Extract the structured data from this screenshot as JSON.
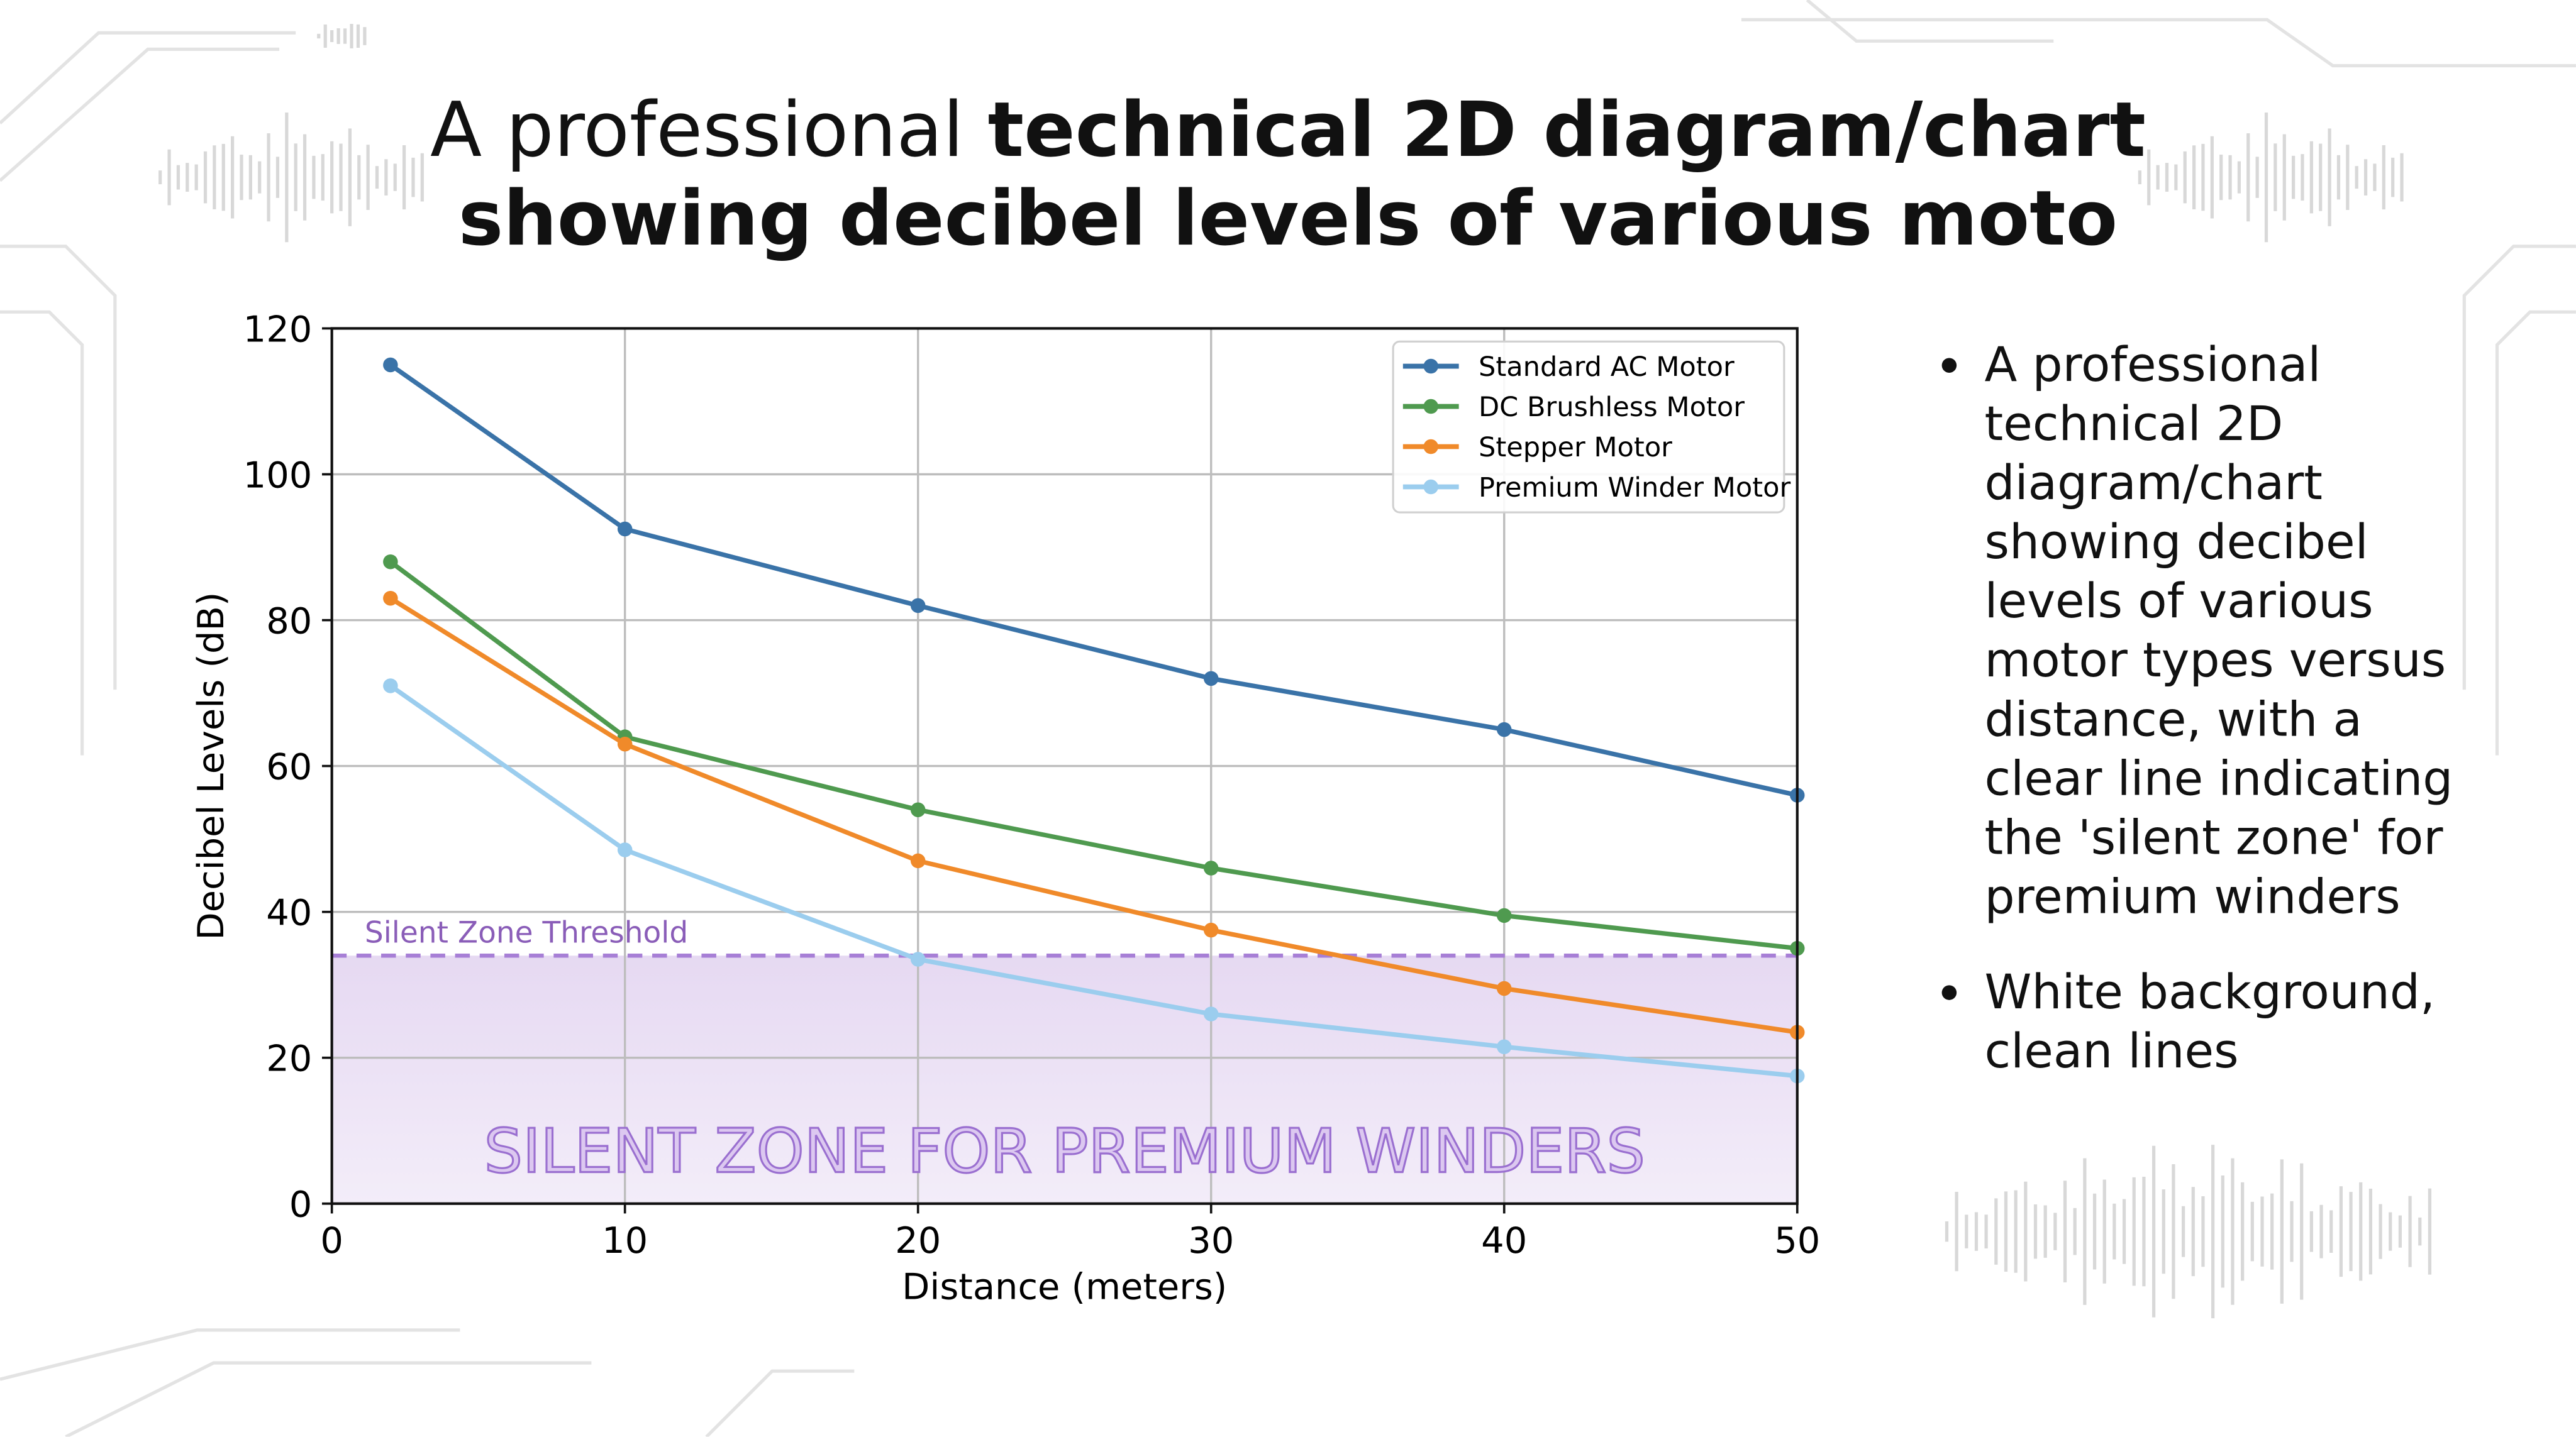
{
  "title": {
    "line1_normal": "A professional",
    "line1_bold": "technical 2D diagram/chart",
    "line2_bold": "showing decibel levels of various moto"
  },
  "bullets": [
    "A professional technical 2D diagram/chart showing decibel levels of various motor types versus distance, with a clear line indicating the 'silent zone' for premium winders",
    "White background, clean lines"
  ],
  "chart_data": {
    "type": "line",
    "xlabel": "Distance (meters)",
    "ylabel": "Decibel Levels (dB)",
    "xlim": [
      0,
      50
    ],
    "ylim": [
      0,
      120
    ],
    "xticks": [
      0,
      10,
      20,
      30,
      40,
      50
    ],
    "yticks": [
      0,
      20,
      40,
      60,
      80,
      100,
      120
    ],
    "grid": true,
    "legend_position": "top-right",
    "x": [
      2,
      10,
      20,
      30,
      40,
      50
    ],
    "series": [
      {
        "name": "Standard AC Motor",
        "color": "#3a73a8",
        "values": [
          115,
          92.5,
          82,
          72,
          65,
          56
        ]
      },
      {
        "name": "DC Brushless Motor",
        "color": "#4f9a4f",
        "values": [
          88,
          64,
          54,
          46,
          39.5,
          35
        ]
      },
      {
        "name": "Stepper Motor",
        "color": "#f08a2a",
        "values": [
          83,
          63,
          47,
          37.5,
          29.5,
          23.5
        ]
      },
      {
        "name": "Premium Winder Motor",
        "color": "#9bcdee",
        "values": [
          71,
          48.5,
          33.5,
          26,
          21.5,
          17.5
        ]
      }
    ],
    "threshold": {
      "value": 34,
      "label": "Silent Zone Threshold",
      "color": "#a77fd6"
    },
    "zone": {
      "range": [
        0,
        34
      ],
      "label": "SILENT ZONE FOR PREMIUM WINDERS",
      "color": "#e6d9f2"
    }
  }
}
